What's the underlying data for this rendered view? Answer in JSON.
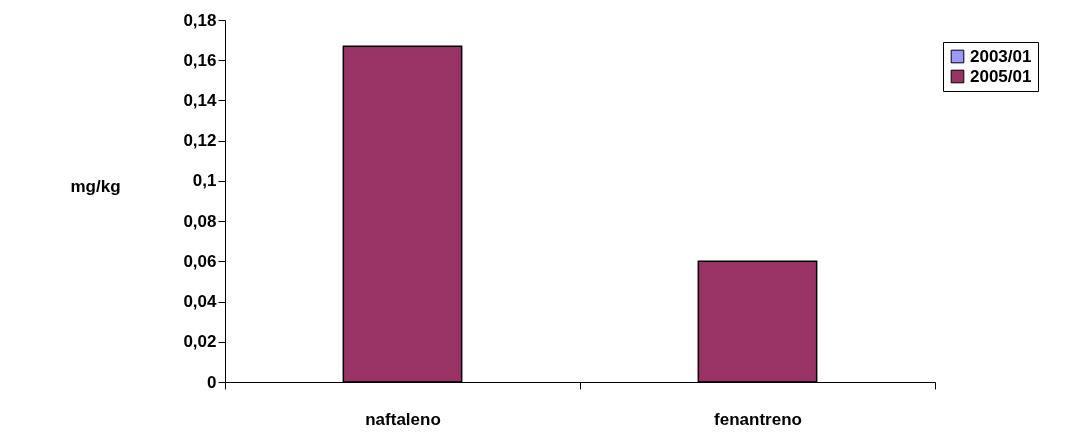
{
  "chart_data": {
    "type": "bar",
    "ylabel": "mg/kg",
    "categories": [
      "naftaleno",
      "fenantreno"
    ],
    "series": [
      {
        "name": "2003/01",
        "color": "#9999ff",
        "values": [
          null,
          null
        ]
      },
      {
        "name": "2005/01",
        "color": "#993366",
        "values": [
          0.167,
          0.06
        ]
      }
    ],
    "ylim": [
      0,
      0.18
    ],
    "yticks": [
      0,
      {
        "value": 0.02,
        "label": "0,02"
      },
      {
        "value": 0.04,
        "label": "0,04"
      },
      {
        "value": 0.06,
        "label": "0,06"
      },
      {
        "value": 0.08,
        "label": "0,08"
      },
      {
        "value": 0.1,
        "label": "0,1"
      },
      {
        "value": 0.12,
        "label": "0,12"
      },
      {
        "value": 0.14,
        "label": "0,14"
      },
      {
        "value": 0.16,
        "label": "0,16"
      },
      {
        "value": 0.18,
        "label": "0,18"
      }
    ],
    "legend": "right",
    "grid": false
  }
}
